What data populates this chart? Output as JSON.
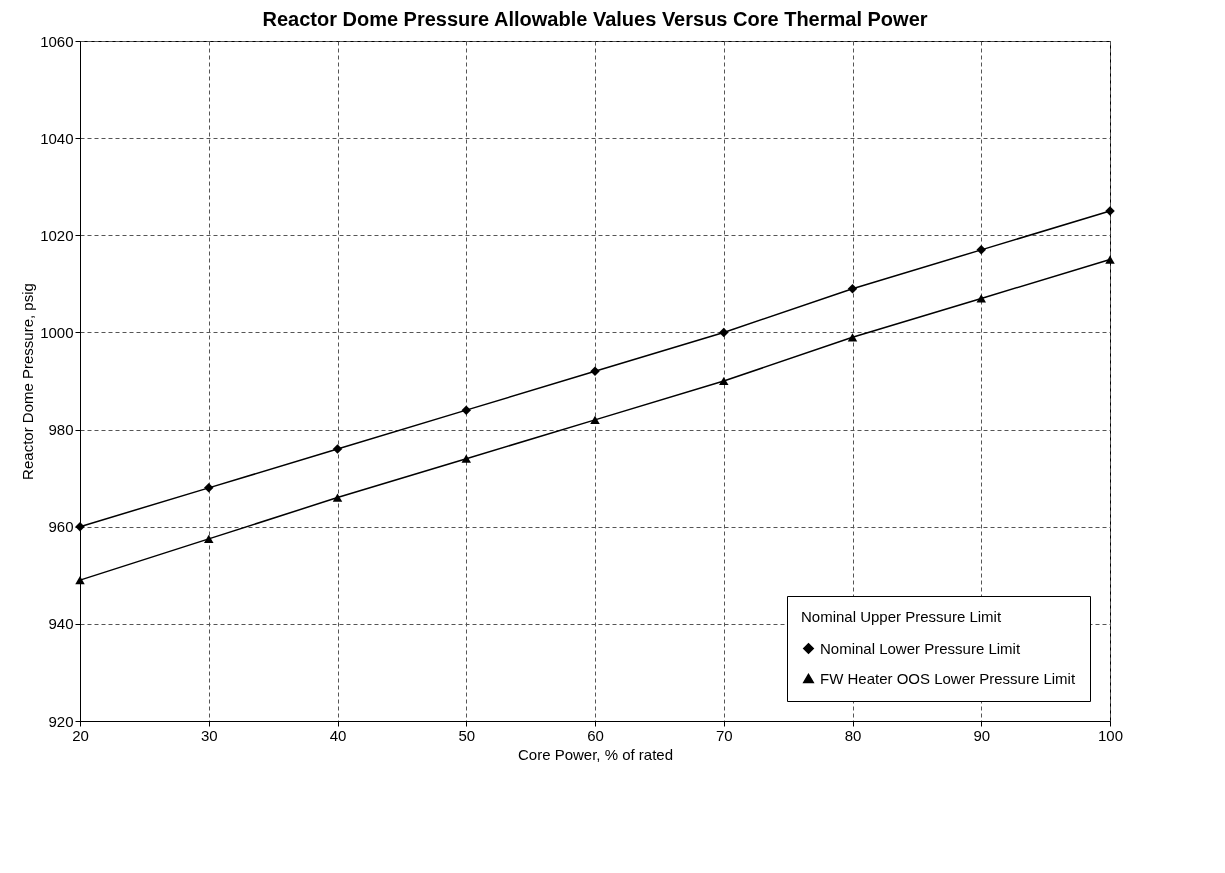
{
  "chart_data": {
    "type": "line",
    "title": "Reactor Dome Pressure Allowable Values Versus Core Thermal Power",
    "xlabel": "Core Power, % of rated",
    "ylabel": "Reactor Dome Pressure, psig",
    "legend_title": "Nominal Upper Pressure Limit",
    "x": [
      20,
      30,
      40,
      50,
      60,
      70,
      80,
      90,
      100
    ],
    "series": [
      {
        "name": "Nominal Lower Pressure Limit",
        "color": "#000000",
        "marker": "diamond",
        "values": [
          960,
          968,
          976,
          984,
          992,
          1000,
          1009,
          1017,
          1025
        ]
      },
      {
        "name": "FW Heater OOS Lower Pressure Limit",
        "color": "#000000",
        "marker": "triangle",
        "values": [
          949,
          957.5,
          966,
          974,
          982,
          990,
          999,
          1007,
          1015
        ]
      }
    ],
    "xlim": [
      20,
      100
    ],
    "xticks": [
      20,
      30,
      40,
      50,
      60,
      70,
      80,
      90,
      100
    ],
    "ylim": [
      920,
      1060
    ],
    "yticks": [
      920,
      940,
      960,
      980,
      1000,
      1020,
      1040,
      1060
    ],
    "grid": true,
    "legend": "bottom right"
  }
}
